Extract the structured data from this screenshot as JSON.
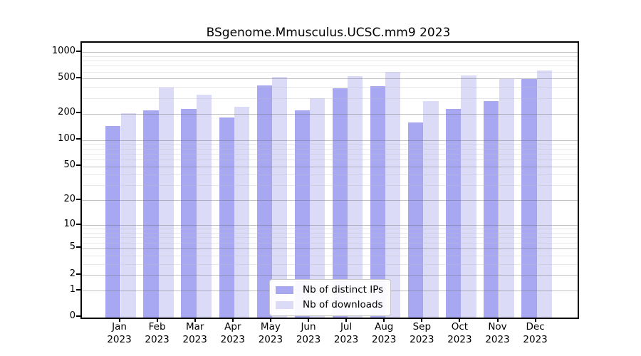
{
  "chart_data": {
    "type": "bar",
    "title": "BSgenome.Mmusculus.UCSC.mm9 2023",
    "categories": [
      "Jan",
      "Feb",
      "Mar",
      "Apr",
      "May",
      "Jun",
      "Jul",
      "Aug",
      "Sep",
      "Oct",
      "Nov",
      "Dec"
    ],
    "year": "2023",
    "series": [
      {
        "name": "Nb of distinct IPs",
        "color": "#a8a8f2",
        "values": [
          145,
          219,
          230,
          183,
          420,
          219,
          394,
          415,
          160,
          227,
          282,
          500
        ]
      },
      {
        "name": "Nb of downloads",
        "color": "#dbdbf8",
        "values": [
          203,
          400,
          332,
          242,
          528,
          300,
          541,
          605,
          281,
          548,
          500,
          628
        ]
      }
    ],
    "xlabel": "",
    "ylabel": "",
    "yscale": "log1p",
    "ylim": [
      0,
      1275
    ],
    "yticks": [
      0,
      1,
      2,
      5,
      10,
      20,
      50,
      100,
      200,
      500,
      1000
    ],
    "grid": "horizontal, log minor + major, drawn over bars",
    "legend_position": "inside bottom-center"
  }
}
